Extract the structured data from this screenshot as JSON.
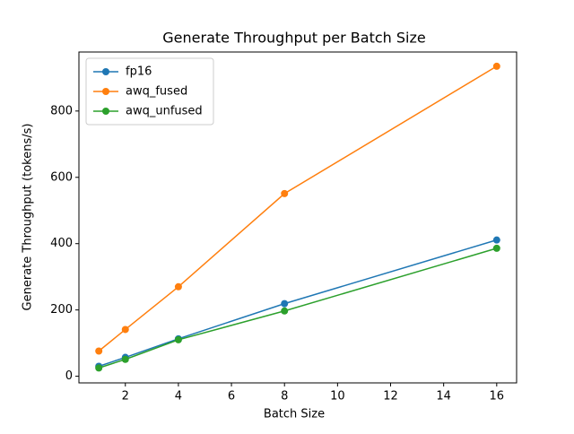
{
  "chart_data": {
    "type": "line",
    "title": "Generate Throughput per Batch Size",
    "x_label": "Batch Size",
    "y_label": "Generate Throughput (tokens/s)",
    "x": [
      1,
      2,
      4,
      8,
      16
    ],
    "series": [
      {
        "name": "fp16",
        "color": "#1f77b4",
        "values": [
          30,
          57,
          113,
          219,
          411
        ]
      },
      {
        "name": "awq_fused",
        "color": "#ff7f0e",
        "values": [
          76,
          141,
          270,
          551,
          935
        ]
      },
      {
        "name": "awq_unfused",
        "color": "#2ca02c",
        "values": [
          25,
          51,
          110,
          197,
          386
        ]
      }
    ],
    "xlim": [
      0.25,
      16.75
    ],
    "xticks": [
      2,
      4,
      6,
      8,
      10,
      12,
      14,
      16
    ],
    "ylim": [
      -20,
      978
    ],
    "yticks": [
      0,
      200,
      400,
      600,
      800
    ],
    "grid": false,
    "legend": "upper-left",
    "markers": true
  }
}
